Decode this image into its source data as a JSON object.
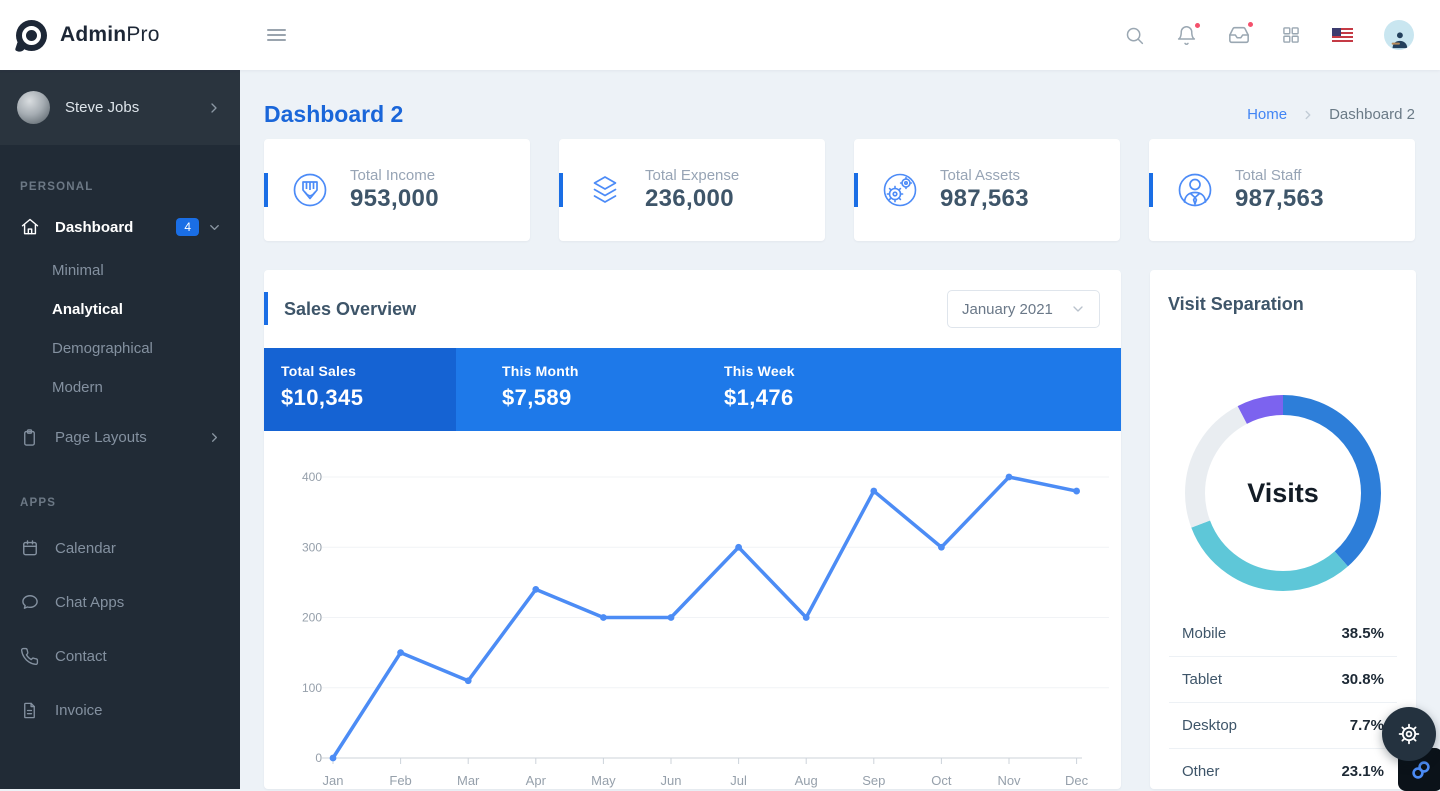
{
  "brand": {
    "bold": "Admin",
    "light": "Pro"
  },
  "colors": {
    "accent_blue": "#1a6ee5",
    "title_blue": "#1a66d9",
    "band_dark": "#1563d3",
    "band_light": "#1e79e9",
    "line_blue": "#4c8cf5",
    "sidebar_bg": "#212b36",
    "notification_red": "#f4516c"
  },
  "sidebar": {
    "user_name": "Steve Jobs",
    "section_personal": "PERSONAL",
    "dashboard_label": "Dashboard",
    "dashboard_badge": "4",
    "submenu": [
      {
        "label": "Minimal"
      },
      {
        "label": "Analytical"
      },
      {
        "label": "Demographical"
      },
      {
        "label": "Modern"
      }
    ],
    "page_layouts_label": "Page Layouts",
    "section_apps": "APPS",
    "apps": [
      {
        "label": "Calendar"
      },
      {
        "label": "Chat Apps"
      },
      {
        "label": "Contact"
      },
      {
        "label": "Invoice"
      }
    ]
  },
  "page": {
    "title": "Dashboard 2",
    "breadcrumb_home": "Home",
    "breadcrumb_current": "Dashboard 2"
  },
  "cards": [
    {
      "label": "Total Income",
      "value": "953,000",
      "icon": "pencil-circle-icon"
    },
    {
      "label": "Total Expense",
      "value": "236,000",
      "icon": "layers-icon"
    },
    {
      "label": "Total Assets",
      "value": "987,563",
      "icon": "gears-circle-icon"
    },
    {
      "label": "Total Staff",
      "value": "987,563",
      "icon": "person-circle-icon"
    }
  ],
  "sales": {
    "title": "Sales Overview",
    "period": "January 2021",
    "stats": [
      {
        "label": "Total Sales",
        "value": "$10,345"
      },
      {
        "label": "This Month",
        "value": "$7,589"
      },
      {
        "label": "This Week",
        "value": "$1,476"
      }
    ],
    "chart_data": {
      "type": "line",
      "x": [
        "Jan",
        "Feb",
        "Mar",
        "Apr",
        "May",
        "Jun",
        "Jul",
        "Aug",
        "Sep",
        "Oct",
        "Nov",
        "Dec"
      ],
      "values": [
        0,
        150,
        110,
        240,
        200,
        200,
        300,
        200,
        380,
        300,
        400,
        380
      ],
      "yticks": [
        0,
        100,
        200,
        300,
        400
      ],
      "ylim": [
        0,
        400
      ],
      "color": "#4c8cf5",
      "grid": "horizontal"
    }
  },
  "visit": {
    "title": "Visit Separation",
    "center_label": "Visits",
    "chart_data": {
      "type": "pie",
      "donut": true,
      "segments": [
        {
          "label": "Mobile",
          "pct": 38.5,
          "color": "#2d7ed9"
        },
        {
          "label": "Tablet",
          "pct": 30.8,
          "color": "#5ec7d8"
        },
        {
          "label": "Other",
          "pct": 23.1,
          "color": "#e9edf1"
        },
        {
          "label": "Desktop",
          "pct": 7.7,
          "color": "#7c63ef"
        }
      ]
    },
    "legend": [
      {
        "label": "Mobile",
        "value": "38.5%"
      },
      {
        "label": "Tablet",
        "value": "30.8%"
      },
      {
        "label": "Desktop",
        "value": "7.7%"
      },
      {
        "label": "Other",
        "value": "23.1%"
      }
    ]
  }
}
